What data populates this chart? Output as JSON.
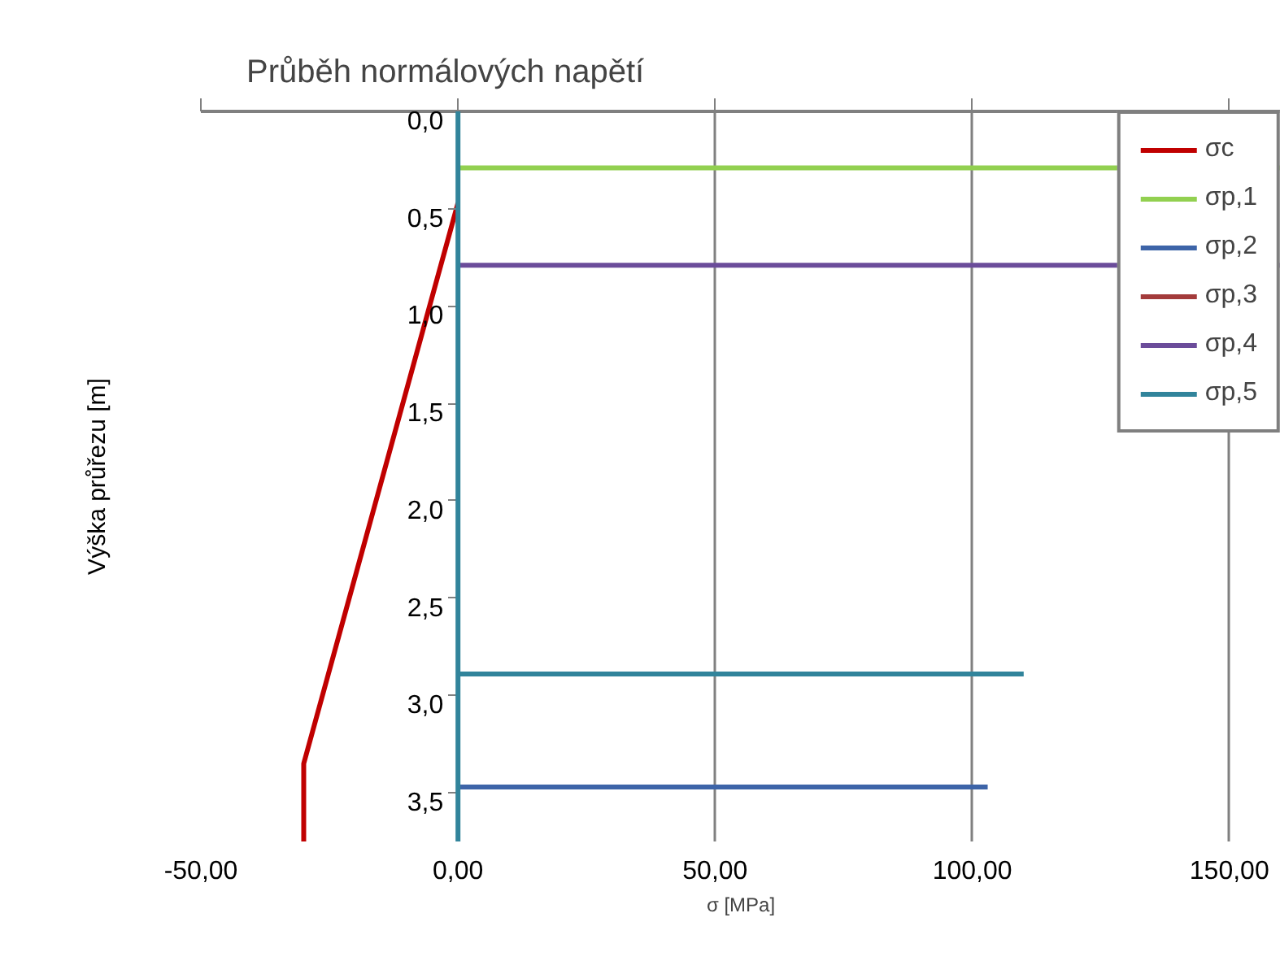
{
  "chart_data": {
    "type": "line",
    "title": "Průběh normálových napětí",
    "xlabel": "σ [MPa]",
    "ylabel": "Výška průřezu [m]",
    "xlim": [
      -50,
      160
    ],
    "ylim": [
      3.75,
      0
    ],
    "xticks": [
      {
        "value": -50,
        "label": "-50,00"
      },
      {
        "value": 0,
        "label": "0,00"
      },
      {
        "value": 50,
        "label": "50,00"
      },
      {
        "value": 100,
        "label": "100,00"
      },
      {
        "value": 150,
        "label": "150,00"
      }
    ],
    "yticks": [
      {
        "value": 0,
        "label": "0,0"
      },
      {
        "value": 0.5,
        "label": "0,5"
      },
      {
        "value": 1,
        "label": "1,0"
      },
      {
        "value": 1.5,
        "label": "1,5"
      },
      {
        "value": 2,
        "label": "2,0"
      },
      {
        "value": 2.5,
        "label": "2,5"
      },
      {
        "value": 3,
        "label": "3,0"
      },
      {
        "value": 3.5,
        "label": "3,5"
      }
    ],
    "series": [
      {
        "name": "σc",
        "color": "#c00000",
        "x": [
          0,
          -30,
          -30
        ],
        "values": [
          0.47,
          3.35,
          3.75
        ]
      },
      {
        "name": "σp,1",
        "color": "#92d050",
        "x": [
          0,
          160
        ],
        "values": [
          0.29,
          0.29
        ]
      },
      {
        "name": "σp,2",
        "color": "#3d64a8",
        "x": [
          0,
          103
        ],
        "values": [
          3.47,
          3.47
        ]
      },
      {
        "name": "σp,3",
        "color": "#a33b3b",
        "values": [
          null,
          null
        ]
      },
      {
        "name": "σp,4",
        "color": "#6b4c9a",
        "x": [
          0,
          160
        ],
        "values": [
          0.79,
          0.79
        ]
      },
      {
        "name": "σp,5",
        "color": "#31849b",
        "x": [
          0,
          110
        ],
        "values": [
          2.89,
          2.89
        ]
      }
    ],
    "ref_lines": [
      {
        "axis": "x",
        "value": 0,
        "label": null,
        "color": "#31849b"
      }
    ],
    "grid": "x",
    "legend": "top right",
    "line_style": "solid",
    "marker": "none"
  }
}
